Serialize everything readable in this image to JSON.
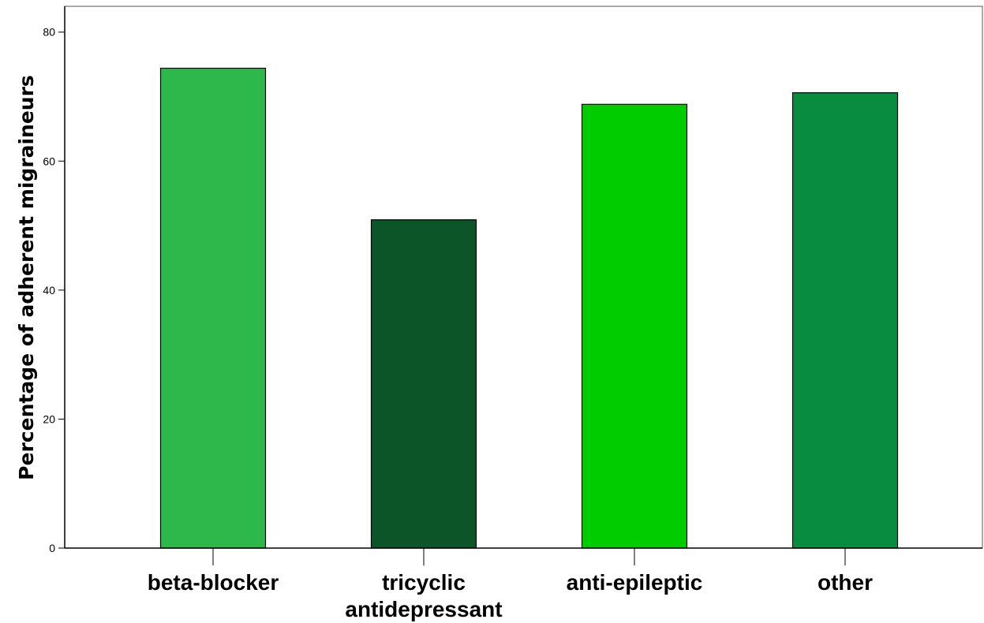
{
  "chart_data": {
    "type": "bar",
    "title": "",
    "xlabel": "",
    "ylabel": "Percentage of adherent migraineurs",
    "categories": [
      [
        "beta-blocker"
      ],
      [
        "tricyclic",
        "antidepressant"
      ],
      [
        "anti-epileptic"
      ],
      [
        "other"
      ]
    ],
    "values": [
      74.4,
      50.9,
      68.8,
      70.6
    ],
    "colors": [
      "#2eb84c",
      "#0b5529",
      "#00cc00",
      "#088c40"
    ],
    "ylim": [
      0,
      84
    ],
    "yticks": [
      0,
      20,
      40,
      60,
      80
    ],
    "grid": false,
    "legend": "none"
  }
}
